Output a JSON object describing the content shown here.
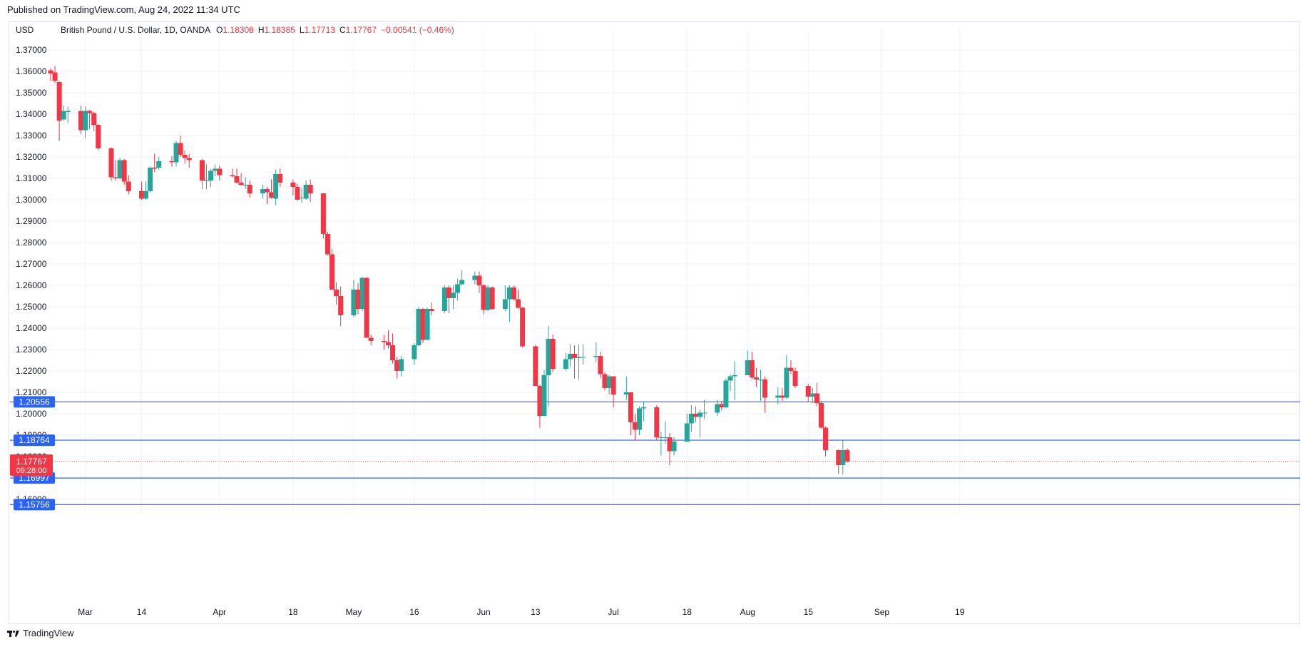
{
  "header": {
    "published": "Published on TradingView.com, Aug 24, 2022 11:34 UTC"
  },
  "legend": {
    "currency": "USD",
    "symbol": "British Pound / U.S. Dollar, 1D, OANDA",
    "o_label": "O",
    "o": "1.18308",
    "h_label": "H",
    "h": "1.18385",
    "l_label": "L",
    "l": "1.17713",
    "c_label": "C",
    "c": "1.17767",
    "change": "−0.00541 (−0.46%)"
  },
  "footer": {
    "brand": "TradingView"
  },
  "colors": {
    "up": "#26a69a",
    "down": "#f23645",
    "level": "#2962ff",
    "grid": "#f0f3fa",
    "price_tag": "#f23645"
  },
  "chart_data": {
    "type": "candlestick",
    "ylim": [
      1.155,
      1.374
    ],
    "y_ticks": [
      "1.37000",
      "1.36000",
      "1.35000",
      "1.34000",
      "1.33000",
      "1.32000",
      "1.31000",
      "1.30000",
      "1.29000",
      "1.28000",
      "1.27000",
      "1.26000",
      "1.25000",
      "1.24000",
      "1.23000",
      "1.22000",
      "1.21000",
      "1.20000",
      "1.19000",
      "1.18000",
      "1.17000",
      "1.16000"
    ],
    "x_ticks": [
      {
        "label": "Mar",
        "date": "2022-03-01"
      },
      {
        "label": "14",
        "date": "2022-03-14"
      },
      {
        "label": "Apr",
        "date": "2022-04-01"
      },
      {
        "label": "18",
        "date": "2022-04-18"
      },
      {
        "label": "May",
        "date": "2022-05-02"
      },
      {
        "label": "16",
        "date": "2022-05-16"
      },
      {
        "label": "Jun",
        "date": "2022-06-01"
      },
      {
        "label": "13",
        "date": "2022-06-13"
      },
      {
        "label": "Jul",
        "date": "2022-07-01"
      },
      {
        "label": "18",
        "date": "2022-07-18"
      },
      {
        "label": "Aug",
        "date": "2022-08-01"
      },
      {
        "label": "15",
        "date": "2022-08-15"
      },
      {
        "label": "Sep",
        "date": "2022-09-01"
      },
      {
        "label": "19",
        "date": "2022-09-19"
      }
    ],
    "x_range": [
      "2022-02-17",
      "2022-09-24"
    ],
    "horizontal_levels": [
      {
        "value": "1.20556"
      },
      {
        "value": "1.18764"
      },
      {
        "value": "1.16997"
      },
      {
        "value": "1.15756"
      }
    ],
    "last_price": {
      "value": "1.17767",
      "countdown": "09:28:00"
    },
    "candles": [
      {
        "d": "2022-02-21",
        "o": 1.3605,
        "h": 1.3615,
        "l": 1.3555,
        "c": 1.359
      },
      {
        "d": "2022-02-22",
        "o": 1.3595,
        "h": 1.3625,
        "l": 1.3545,
        "c": 1.3555
      },
      {
        "d": "2022-02-23",
        "o": 1.355,
        "h": 1.3555,
        "l": 1.3275,
        "c": 1.337
      },
      {
        "d": "2022-02-24",
        "o": 1.3375,
        "h": 1.344,
        "l": 1.337,
        "c": 1.3415
      },
      {
        "d": "2022-02-25",
        "o": 1.341,
        "h": 1.3435,
        "l": 1.336,
        "c": 1.3415
      },
      {
        "d": "2022-02-28",
        "o": 1.3415,
        "h": 1.344,
        "l": 1.3305,
        "c": 1.3325
      },
      {
        "d": "2022-03-01",
        "o": 1.3325,
        "h": 1.3435,
        "l": 1.329,
        "c": 1.3415
      },
      {
        "d": "2022-03-02",
        "o": 1.3415,
        "h": 1.342,
        "l": 1.333,
        "c": 1.3405
      },
      {
        "d": "2022-03-03",
        "o": 1.3405,
        "h": 1.341,
        "l": 1.332,
        "c": 1.335
      },
      {
        "d": "2022-03-04",
        "o": 1.335,
        "h": 1.3355,
        "l": 1.323,
        "c": 1.324
      },
      {
        "d": "2022-03-07",
        "o": 1.324,
        "h": 1.3245,
        "l": 1.309,
        "c": 1.3105
      },
      {
        "d": "2022-03-08",
        "o": 1.3105,
        "h": 1.3185,
        "l": 1.309,
        "c": 1.31
      },
      {
        "d": "2022-03-09",
        "o": 1.31,
        "h": 1.3195,
        "l": 1.3095,
        "c": 1.3185
      },
      {
        "d": "2022-03-10",
        "o": 1.3185,
        "h": 1.319,
        "l": 1.307,
        "c": 1.3085
      },
      {
        "d": "2022-03-11",
        "o": 1.3085,
        "h": 1.3115,
        "l": 1.3025,
        "c": 1.304
      },
      {
        "d": "2022-03-14",
        "o": 1.304,
        "h": 1.3085,
        "l": 1.3,
        "c": 1.3005
      },
      {
        "d": "2022-03-15",
        "o": 1.3005,
        "h": 1.3085,
        "l": 1.3,
        "c": 1.304
      },
      {
        "d": "2022-03-16",
        "o": 1.304,
        "h": 1.3155,
        "l": 1.3035,
        "c": 1.315
      },
      {
        "d": "2022-03-17",
        "o": 1.315,
        "h": 1.3215,
        "l": 1.313,
        "c": 1.3145
      },
      {
        "d": "2022-03-18",
        "o": 1.315,
        "h": 1.32,
        "l": 1.314,
        "c": 1.318
      },
      {
        "d": "2022-03-21",
        "o": 1.318,
        "h": 1.3205,
        "l": 1.3155,
        "c": 1.3175
      },
      {
        "d": "2022-03-22",
        "o": 1.3175,
        "h": 1.3275,
        "l": 1.3155,
        "c": 1.3265
      },
      {
        "d": "2022-03-23",
        "o": 1.3265,
        "h": 1.33,
        "l": 1.32,
        "c": 1.321
      },
      {
        "d": "2022-03-24",
        "o": 1.321,
        "h": 1.323,
        "l": 1.317,
        "c": 1.3195
      },
      {
        "d": "2022-03-25",
        "o": 1.3195,
        "h": 1.3215,
        "l": 1.315,
        "c": 1.3185
      },
      {
        "d": "2022-03-28",
        "o": 1.3185,
        "h": 1.319,
        "l": 1.305,
        "c": 1.309
      },
      {
        "d": "2022-03-29",
        "o": 1.309,
        "h": 1.3165,
        "l": 1.305,
        "c": 1.309
      },
      {
        "d": "2022-03-30",
        "o": 1.309,
        "h": 1.3145,
        "l": 1.306,
        "c": 1.3135
      },
      {
        "d": "2022-03-31",
        "o": 1.3135,
        "h": 1.3165,
        "l": 1.311,
        "c": 1.3145
      },
      {
        "d": "2022-04-01",
        "o": 1.3145,
        "h": 1.316,
        "l": 1.309,
        "c": 1.3115
      },
      {
        "d": "2022-04-04",
        "o": 1.3115,
        "h": 1.3145,
        "l": 1.3105,
        "c": 1.311
      },
      {
        "d": "2022-04-05",
        "o": 1.311,
        "h": 1.3145,
        "l": 1.3075,
        "c": 1.308
      },
      {
        "d": "2022-04-06",
        "o": 1.308,
        "h": 1.3125,
        "l": 1.3065,
        "c": 1.307
      },
      {
        "d": "2022-04-07",
        "o": 1.307,
        "h": 1.3105,
        "l": 1.305,
        "c": 1.307
      },
      {
        "d": "2022-04-08",
        "o": 1.307,
        "h": 1.309,
        "l": 1.301,
        "c": 1.303
      },
      {
        "d": "2022-04-11",
        "o": 1.303,
        "h": 1.307,
        "l": 1.3005,
        "c": 1.305
      },
      {
        "d": "2022-04-12",
        "o": 1.305,
        "h": 1.306,
        "l": 1.298,
        "c": 1.3035
      },
      {
        "d": "2022-04-13",
        "o": 1.3035,
        "h": 1.3095,
        "l": 1.3005,
        "c": 1.301
      },
      {
        "d": "2022-04-14",
        "o": 1.3005,
        "h": 1.314,
        "l": 1.2975,
        "c": 1.312
      },
      {
        "d": "2022-04-15",
        "o": 1.312,
        "h": 1.3145,
        "l": 1.306,
        "c": 1.308
      },
      {
        "d": "2022-04-18",
        "o": 1.308,
        "h": 1.3095,
        "l": 1.302,
        "c": 1.306
      },
      {
        "d": "2022-04-19",
        "o": 1.306,
        "h": 1.3075,
        "l": 1.2995,
        "c": 1.3
      },
      {
        "d": "2022-04-20",
        "o": 1.301,
        "h": 1.3055,
        "l": 1.2985,
        "c": 1.301
      },
      {
        "d": "2022-04-21",
        "o": 1.3005,
        "h": 1.309,
        "l": 1.3,
        "c": 1.307
      },
      {
        "d": "2022-04-22",
        "o": 1.307,
        "h": 1.3095,
        "l": 1.299,
        "c": 1.303
      },
      {
        "d": "2022-04-25",
        "o": 1.303,
        "h": 1.303,
        "l": 1.282,
        "c": 1.284
      },
      {
        "d": "2022-04-26",
        "o": 1.284,
        "h": 1.285,
        "l": 1.274,
        "c": 1.2745
      },
      {
        "d": "2022-04-27",
        "o": 1.2745,
        "h": 1.277,
        "l": 1.258,
        "c": 1.258
      },
      {
        "d": "2022-04-28",
        "o": 1.258,
        "h": 1.2615,
        "l": 1.251,
        "c": 1.255
      },
      {
        "d": "2022-04-29",
        "o": 1.255,
        "h": 1.2595,
        "l": 1.241,
        "c": 1.246
      },
      {
        "d": "2022-05-02",
        "o": 1.246,
        "h": 1.2625,
        "l": 1.245,
        "c": 1.258
      },
      {
        "d": "2022-05-03",
        "o": 1.258,
        "h": 1.261,
        "l": 1.2465,
        "c": 1.249
      },
      {
        "d": "2022-05-04",
        "o": 1.249,
        "h": 1.264,
        "l": 1.248,
        "c": 1.2635
      },
      {
        "d": "2022-05-05",
        "o": 1.2635,
        "h": 1.264,
        "l": 1.2355,
        "c": 1.2355
      },
      {
        "d": "2022-05-06",
        "o": 1.2355,
        "h": 1.237,
        "l": 1.232,
        "c": 1.234
      },
      {
        "d": "2022-05-09",
        "o": 1.234,
        "h": 1.237,
        "l": 1.23,
        "c": 1.2335
      },
      {
        "d": "2022-05-10",
        "o": 1.2335,
        "h": 1.239,
        "l": 1.2305,
        "c": 1.232
      },
      {
        "d": "2022-05-11",
        "o": 1.232,
        "h": 1.2375,
        "l": 1.2235,
        "c": 1.225
      },
      {
        "d": "2022-05-12",
        "o": 1.225,
        "h": 1.2265,
        "l": 1.2165,
        "c": 1.22
      },
      {
        "d": "2022-05-13",
        "o": 1.22,
        "h": 1.227,
        "l": 1.2175,
        "c": 1.2255
      },
      {
        "d": "2022-05-16",
        "o": 1.2255,
        "h": 1.233,
        "l": 1.223,
        "c": 1.232
      },
      {
        "d": "2022-05-17",
        "o": 1.232,
        "h": 1.25,
        "l": 1.2315,
        "c": 1.249
      },
      {
        "d": "2022-05-18",
        "o": 1.249,
        "h": 1.2495,
        "l": 1.233,
        "c": 1.2345
      },
      {
        "d": "2022-05-19",
        "o": 1.2345,
        "h": 1.2495,
        "l": 1.2345,
        "c": 1.249
      },
      {
        "d": "2022-05-20",
        "o": 1.249,
        "h": 1.252,
        "l": 1.246,
        "c": 1.248
      },
      {
        "d": "2022-05-23",
        "o": 1.248,
        "h": 1.26,
        "l": 1.247,
        "c": 1.259
      },
      {
        "d": "2022-05-24",
        "o": 1.259,
        "h": 1.26,
        "l": 1.247,
        "c": 1.254
      },
      {
        "d": "2022-05-25",
        "o": 1.254,
        "h": 1.26,
        "l": 1.249,
        "c": 1.2565
      },
      {
        "d": "2022-05-26",
        "o": 1.2565,
        "h": 1.263,
        "l": 1.253,
        "c": 1.2605
      },
      {
        "d": "2022-05-27",
        "o": 1.2605,
        "h": 1.267,
        "l": 1.26,
        "c": 1.2625
      },
      {
        "d": "2022-05-30",
        "o": 1.2625,
        "h": 1.2665,
        "l": 1.2605,
        "c": 1.2645
      },
      {
        "d": "2022-05-31",
        "o": 1.2645,
        "h": 1.2665,
        "l": 1.2565,
        "c": 1.26
      },
      {
        "d": "2022-06-01",
        "o": 1.26,
        "h": 1.2605,
        "l": 1.2465,
        "c": 1.2485
      },
      {
        "d": "2022-06-02",
        "o": 1.2485,
        "h": 1.26,
        "l": 1.248,
        "c": 1.259
      },
      {
        "d": "2022-06-03",
        "o": 1.259,
        "h": 1.2595,
        "l": 1.2485,
        "c": 1.249
      },
      {
        "d": "2022-06-06",
        "o": 1.249,
        "h": 1.26,
        "l": 1.248,
        "c": 1.2535
      },
      {
        "d": "2022-06-07",
        "o": 1.2535,
        "h": 1.26,
        "l": 1.243,
        "c": 1.259
      },
      {
        "d": "2022-06-08",
        "o": 1.259,
        "h": 1.26,
        "l": 1.253,
        "c": 1.2535
      },
      {
        "d": "2022-06-09",
        "o": 1.2535,
        "h": 1.258,
        "l": 1.249,
        "c": 1.2495
      },
      {
        "d": "2022-06-10",
        "o": 1.2495,
        "h": 1.25,
        "l": 1.231,
        "c": 1.2315
      },
      {
        "d": "2022-06-13",
        "o": 1.2315,
        "h": 1.232,
        "l": 1.213,
        "c": 1.213
      },
      {
        "d": "2022-06-14",
        "o": 1.213,
        "h": 1.2135,
        "l": 1.1935,
        "c": 1.199
      },
      {
        "d": "2022-06-15",
        "o": 1.199,
        "h": 1.2205,
        "l": 1.199,
        "c": 1.218
      },
      {
        "d": "2022-06-16",
        "o": 1.218,
        "h": 1.241,
        "l": 1.2035,
        "c": 1.235
      },
      {
        "d": "2022-06-17",
        "o": 1.235,
        "h": 1.237,
        "l": 1.2195,
        "c": 1.221
      },
      {
        "d": "2022-06-20",
        "o": 1.221,
        "h": 1.2285,
        "l": 1.22,
        "c": 1.2255
      },
      {
        "d": "2022-06-21",
        "o": 1.2255,
        "h": 1.2325,
        "l": 1.222,
        "c": 1.228
      },
      {
        "d": "2022-06-22",
        "o": 1.228,
        "h": 1.232,
        "l": 1.2165,
        "c": 1.226
      },
      {
        "d": "2022-06-23",
        "o": 1.226,
        "h": 1.2325,
        "l": 1.216,
        "c": 1.2265
      },
      {
        "d": "2022-06-24",
        "o": 1.2265,
        "h": 1.2325,
        "l": 1.223,
        "c": 1.2265
      },
      {
        "d": "2022-06-27",
        "o": 1.2265,
        "h": 1.2335,
        "l": 1.224,
        "c": 1.227
      },
      {
        "d": "2022-06-28",
        "o": 1.227,
        "h": 1.229,
        "l": 1.2165,
        "c": 1.2185
      },
      {
        "d": "2022-06-29",
        "o": 1.2185,
        "h": 1.2195,
        "l": 1.211,
        "c": 1.212
      },
      {
        "d": "2022-06-30",
        "o": 1.212,
        "h": 1.218,
        "l": 1.209,
        "c": 1.2175
      },
      {
        "d": "2022-07-01",
        "o": 1.2175,
        "h": 1.2175,
        "l": 1.203,
        "c": 1.209
      },
      {
        "d": "2022-07-04",
        "o": 1.209,
        "h": 1.2175,
        "l": 1.2065,
        "c": 1.21
      },
      {
        "d": "2022-07-05",
        "o": 1.21,
        "h": 1.21,
        "l": 1.19,
        "c": 1.196
      },
      {
        "d": "2022-07-06",
        "o": 1.196,
        "h": 1.2,
        "l": 1.1875,
        "c": 1.1925
      },
      {
        "d": "2022-07-07",
        "o": 1.1925,
        "h": 1.2035,
        "l": 1.19,
        "c": 1.2025
      },
      {
        "d": "2022-07-08",
        "o": 1.2025,
        "h": 1.2055,
        "l": 1.1965,
        "c": 1.203
      },
      {
        "d": "2022-07-11",
        "o": 1.203,
        "h": 1.204,
        "l": 1.1875,
        "c": 1.189
      },
      {
        "d": "2022-07-12",
        "o": 1.189,
        "h": 1.1915,
        "l": 1.1805,
        "c": 1.189
      },
      {
        "d": "2022-07-13",
        "o": 1.189,
        "h": 1.1965,
        "l": 1.186,
        "c": 1.189
      },
      {
        "d": "2022-07-14",
        "o": 1.189,
        "h": 1.191,
        "l": 1.176,
        "c": 1.1825
      },
      {
        "d": "2022-07-15",
        "o": 1.1825,
        "h": 1.189,
        "l": 1.1805,
        "c": 1.187
      },
      {
        "d": "2022-07-18",
        "o": 1.187,
        "h": 1.2,
        "l": 1.187,
        "c": 1.1955
      },
      {
        "d": "2022-07-19",
        "o": 1.1955,
        "h": 1.204,
        "l": 1.1915,
        "c": 1.2
      },
      {
        "d": "2022-07-20",
        "o": 1.2,
        "h": 1.2035,
        "l": 1.196,
        "c": 1.1985
      },
      {
        "d": "2022-07-21",
        "o": 1.1985,
        "h": 1.202,
        "l": 1.189,
        "c": 1.2005
      },
      {
        "d": "2022-07-22",
        "o": 1.2005,
        "h": 1.2065,
        "l": 1.1975,
        "c": 1.2005
      },
      {
        "d": "2022-07-25",
        "o": 1.2005,
        "h": 1.2065,
        "l": 1.199,
        "c": 1.2045
      },
      {
        "d": "2022-07-26",
        "o": 1.2045,
        "h": 1.206,
        "l": 1.2015,
        "c": 1.203
      },
      {
        "d": "2022-07-27",
        "o": 1.203,
        "h": 1.2165,
        "l": 1.2025,
        "c": 1.2155
      },
      {
        "d": "2022-07-28",
        "o": 1.2155,
        "h": 1.2185,
        "l": 1.2105,
        "c": 1.2175
      },
      {
        "d": "2022-07-29",
        "o": 1.2175,
        "h": 1.2245,
        "l": 1.2065,
        "c": 1.218
      },
      {
        "d": "2022-08-01",
        "o": 1.218,
        "h": 1.2295,
        "l": 1.218,
        "c": 1.225
      },
      {
        "d": "2022-08-02",
        "o": 1.225,
        "h": 1.229,
        "l": 1.216,
        "c": 1.217
      },
      {
        "d": "2022-08-03",
        "o": 1.217,
        "h": 1.2215,
        "l": 1.2125,
        "c": 1.216
      },
      {
        "d": "2022-08-04",
        "o": 1.216,
        "h": 1.2205,
        "l": 1.206,
        "c": 1.216
      },
      {
        "d": "2022-08-05",
        "o": 1.216,
        "h": 1.2175,
        "l": 1.2005,
        "c": 1.2075
      },
      {
        "d": "2022-08-08",
        "o": 1.2075,
        "h": 1.2125,
        "l": 1.2045,
        "c": 1.2085
      },
      {
        "d": "2022-08-09",
        "o": 1.2085,
        "h": 1.212,
        "l": 1.206,
        "c": 1.2075
      },
      {
        "d": "2022-08-10",
        "o": 1.2075,
        "h": 1.2275,
        "l": 1.207,
        "c": 1.2215
      },
      {
        "d": "2022-08-11",
        "o": 1.2215,
        "h": 1.225,
        "l": 1.2185,
        "c": 1.22
      },
      {
        "d": "2022-08-12",
        "o": 1.22,
        "h": 1.2215,
        "l": 1.212,
        "c": 1.213
      },
      {
        "d": "2022-08-15",
        "o": 1.213,
        "h": 1.214,
        "l": 1.2055,
        "c": 1.208
      },
      {
        "d": "2022-08-16",
        "o": 1.208,
        "h": 1.212,
        "l": 1.205,
        "c": 1.2095
      },
      {
        "d": "2022-08-17",
        "o": 1.2095,
        "h": 1.2145,
        "l": 1.2035,
        "c": 1.205
      },
      {
        "d": "2022-08-18",
        "o": 1.205,
        "h": 1.206,
        "l": 1.193,
        "c": 1.1935
      },
      {
        "d": "2022-08-19",
        "o": 1.1935,
        "h": 1.194,
        "l": 1.18,
        "c": 1.183
      },
      {
        "d": "2022-08-22",
        "o": 1.183,
        "h": 1.1835,
        "l": 1.172,
        "c": 1.176
      },
      {
        "d": "2022-08-23",
        "o": 1.176,
        "h": 1.1875,
        "l": 1.1715,
        "c": 1.183
      },
      {
        "d": "2022-08-24",
        "o": 1.18308,
        "h": 1.18385,
        "l": 1.17713,
        "c": 1.17767
      }
    ]
  }
}
